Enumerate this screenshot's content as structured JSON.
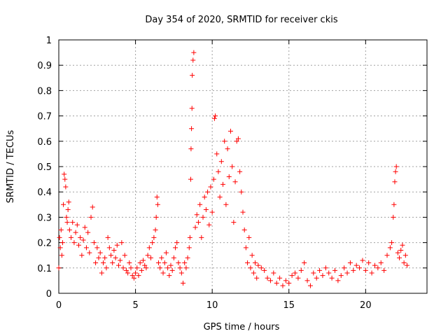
{
  "chart_data": {
    "type": "scatter",
    "title": "Day 354 of 2020, SRMTID for receiver ckis",
    "xlabel": "GPS time / hours",
    "ylabel": "SRMTID / TECUs",
    "xlim": [
      0,
      24
    ],
    "ylim": [
      0,
      1
    ],
    "xticks": [
      "0",
      "5",
      "10",
      "15",
      "20"
    ],
    "xtick_values": [
      0,
      5,
      10,
      15,
      20
    ],
    "yticks": [
      "0",
      "0.1",
      "0.2",
      "0.3",
      "0.4",
      "0.5",
      "0.6",
      "0.7",
      "0.8",
      "0.9",
      "1"
    ],
    "ytick_values": [
      0,
      0.1,
      0.2,
      0.3,
      0.4,
      0.5,
      0.6,
      0.7,
      0.8,
      0.9,
      1.0
    ],
    "grid": true,
    "marker": "+",
    "color": "#ff0000",
    "series": [
      {
        "name": "SRMTID",
        "x": [
          0.0,
          0.05,
          0.1,
          0.15,
          0.2,
          0.25,
          0.3,
          0.35,
          0.4,
          0.45,
          0.5,
          0.55,
          0.6,
          0.65,
          0.7,
          0.8,
          0.9,
          1.0,
          1.1,
          1.2,
          1.3,
          1.4,
          1.5,
          1.6,
          1.7,
          1.8,
          1.9,
          2.0,
          2.1,
          2.2,
          2.3,
          2.4,
          2.5,
          2.6,
          2.7,
          2.8,
          2.9,
          3.0,
          3.1,
          3.2,
          3.3,
          3.4,
          3.5,
          3.6,
          3.7,
          3.8,
          3.9,
          4.0,
          4.1,
          4.2,
          4.3,
          4.4,
          4.5,
          4.6,
          4.7,
          4.8,
          4.9,
          5.0,
          5.1,
          5.2,
          5.3,
          5.4,
          5.5,
          5.6,
          5.7,
          5.8,
          5.9,
          6.0,
          6.1,
          6.2,
          6.3,
          6.35,
          6.4,
          6.45,
          6.5,
          6.6,
          6.7,
          6.8,
          6.9,
          7.0,
          7.1,
          7.2,
          7.3,
          7.4,
          7.5,
          7.6,
          7.7,
          7.8,
          7.9,
          8.0,
          8.1,
          8.2,
          8.3,
          8.4,
          8.5,
          8.55,
          8.6,
          8.62,
          8.65,
          8.68,
          8.7,
          8.75,
          8.8,
          8.9,
          9.0,
          9.1,
          9.2,
          9.3,
          9.4,
          9.5,
          9.6,
          9.7,
          9.8,
          9.9,
          10.0,
          10.1,
          10.15,
          10.2,
          10.3,
          10.4,
          10.5,
          10.6,
          10.7,
          10.8,
          10.9,
          11.0,
          11.1,
          11.2,
          11.3,
          11.4,
          11.5,
          11.6,
          11.7,
          11.8,
          11.9,
          12.0,
          12.1,
          12.2,
          12.3,
          12.4,
          12.5,
          12.6,
          12.7,
          12.8,
          12.9,
          13.0,
          13.2,
          13.4,
          13.6,
          13.8,
          14.0,
          14.2,
          14.4,
          14.6,
          14.8,
          15.0,
          15.2,
          15.4,
          15.6,
          15.8,
          16.0,
          16.2,
          16.4,
          16.6,
          16.8,
          17.0,
          17.2,
          17.4,
          17.6,
          17.8,
          18.0,
          18.2,
          18.4,
          18.6,
          18.8,
          19.0,
          19.2,
          19.4,
          19.6,
          19.8,
          20.0,
          20.2,
          20.4,
          20.6,
          20.8,
          21.0,
          21.2,
          21.4,
          21.6,
          21.7,
          21.8,
          21.85,
          21.9,
          21.95,
          22.0,
          22.1,
          22.2,
          22.3,
          22.4,
          22.5,
          22.6,
          22.7
        ],
        "y": [
          0.1,
          0.22,
          0.18,
          0.25,
          0.15,
          0.2,
          0.35,
          0.47,
          0.45,
          0.42,
          0.3,
          0.28,
          0.33,
          0.36,
          0.25,
          0.22,
          0.28,
          0.2,
          0.24,
          0.27,
          0.19,
          0.22,
          0.15,
          0.21,
          0.26,
          0.18,
          0.24,
          0.16,
          0.3,
          0.34,
          0.2,
          0.12,
          0.18,
          0.14,
          0.16,
          0.08,
          0.12,
          0.14,
          0.1,
          0.22,
          0.18,
          0.15,
          0.12,
          0.17,
          0.14,
          0.19,
          0.11,
          0.13,
          0.2,
          0.1,
          0.15,
          0.09,
          0.08,
          0.12,
          0.1,
          0.07,
          0.06,
          0.08,
          0.1,
          0.07,
          0.12,
          0.09,
          0.13,
          0.11,
          0.1,
          0.15,
          0.18,
          0.14,
          0.2,
          0.22,
          0.25,
          0.3,
          0.38,
          0.35,
          0.12,
          0.1,
          0.14,
          0.08,
          0.12,
          0.16,
          0.1,
          0.07,
          0.11,
          0.09,
          0.14,
          0.18,
          0.2,
          0.12,
          0.1,
          0.08,
          0.04,
          0.12,
          0.1,
          0.14,
          0.18,
          0.22,
          0.45,
          0.57,
          0.65,
          0.73,
          0.86,
          0.92,
          0.95,
          0.26,
          0.31,
          0.28,
          0.35,
          0.22,
          0.3,
          0.38,
          0.33,
          0.4,
          0.27,
          0.42,
          0.32,
          0.45,
          0.69,
          0.7,
          0.55,
          0.48,
          0.38,
          0.52,
          0.43,
          0.6,
          0.35,
          0.57,
          0.46,
          0.64,
          0.5,
          0.28,
          0.44,
          0.6,
          0.61,
          0.48,
          0.4,
          0.32,
          0.25,
          0.18,
          0.12,
          0.22,
          0.1,
          0.15,
          0.08,
          0.12,
          0.06,
          0.11,
          0.1,
          0.09,
          0.06,
          0.05,
          0.08,
          0.04,
          0.06,
          0.03,
          0.05,
          0.04,
          0.07,
          0.08,
          0.06,
          0.09,
          0.12,
          0.05,
          0.03,
          0.08,
          0.06,
          0.09,
          0.07,
          0.1,
          0.08,
          0.06,
          0.09,
          0.05,
          0.07,
          0.1,
          0.08,
          0.12,
          0.09,
          0.11,
          0.1,
          0.13,
          0.09,
          0.12,
          0.08,
          0.11,
          0.1,
          0.12,
          0.09,
          0.15,
          0.18,
          0.2,
          0.3,
          0.35,
          0.44,
          0.48,
          0.5,
          0.16,
          0.14,
          0.17,
          0.19,
          0.12,
          0.15,
          0.11
        ]
      }
    ]
  }
}
